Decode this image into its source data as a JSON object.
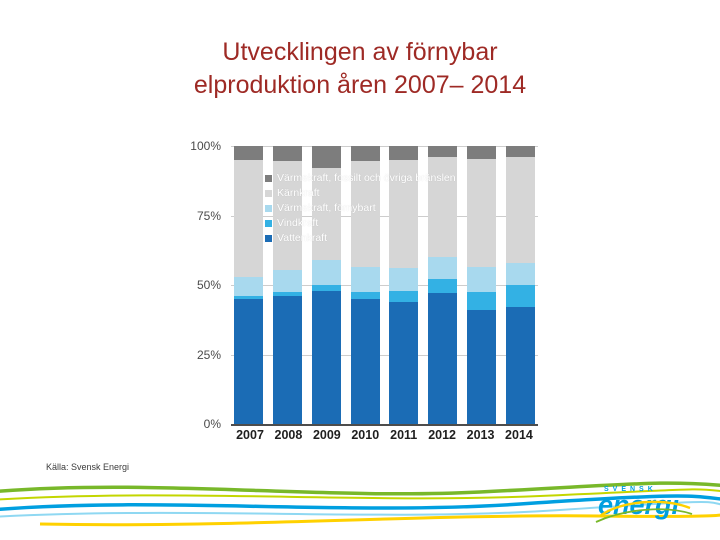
{
  "slide": {
    "title_line1": "Utvecklingen av förnybar",
    "title_line2": "elproduktion åren 2007– 2014",
    "source": "Källa: Svensk Energi"
  },
  "logo": {
    "top": "SVENSK",
    "name": "energi"
  },
  "colors": {
    "title": "#9e2a25",
    "wave_green": "#78b82a",
    "wave_lime": "#c3d600",
    "wave_blue": "#009fe0",
    "wave_sky": "#8fd8f2",
    "wave_yellow": "#ffd100",
    "logo_blue": "#009fe0"
  },
  "chart_data": {
    "type": "bar",
    "stacked": true,
    "units": "percent",
    "title": "",
    "xlabel": "",
    "ylabel": "",
    "categories": [
      "2007",
      "2008",
      "2009",
      "2010",
      "2011",
      "2012",
      "2013",
      "2014"
    ],
    "y_ticks": [
      "100%",
      "75%",
      "50%",
      "25%",
      "0%"
    ],
    "ylim": [
      0,
      100
    ],
    "grid": "horizontal",
    "legend_position": "top-left-overlay",
    "series": [
      {
        "name": "Vattenkraft",
        "color": "#1b6cb5",
        "values": [
          45,
          46,
          48,
          45,
          44,
          47,
          41,
          42
        ]
      },
      {
        "name": "Vindkraft",
        "color": "#33b1e4",
        "values": [
          1,
          1.5,
          2,
          2.5,
          4,
          5,
          6.5,
          8
        ]
      },
      {
        "name": "Värmekraft, förnybart",
        "color": "#a8d9ee",
        "values": [
          7,
          8,
          9,
          9,
          8,
          8,
          9,
          8
        ]
      },
      {
        "name": "Kärnkraft",
        "color": "#d6d6d6",
        "values": [
          42,
          39,
          33,
          38,
          39,
          36,
          39,
          38
        ]
      },
      {
        "name": "Värmekraft, fossilt och övriga bränslen",
        "color": "#7d7d7d",
        "values": [
          5,
          5.5,
          8,
          5.5,
          5,
          4,
          4.5,
          4
        ]
      }
    ],
    "legend": [
      {
        "label": "Värmekraft, fossilt och övriga bränslen",
        "color": "#7d7d7d"
      },
      {
        "label": "Kärnkraft",
        "color": "#d6d6d6"
      },
      {
        "label": "Värmekraft, förnybart",
        "color": "#a8d9ee"
      },
      {
        "label": "Vindkraft",
        "color": "#33b1e4"
      },
      {
        "label": "Vattenkraft",
        "color": "#1b6cb5"
      }
    ]
  }
}
